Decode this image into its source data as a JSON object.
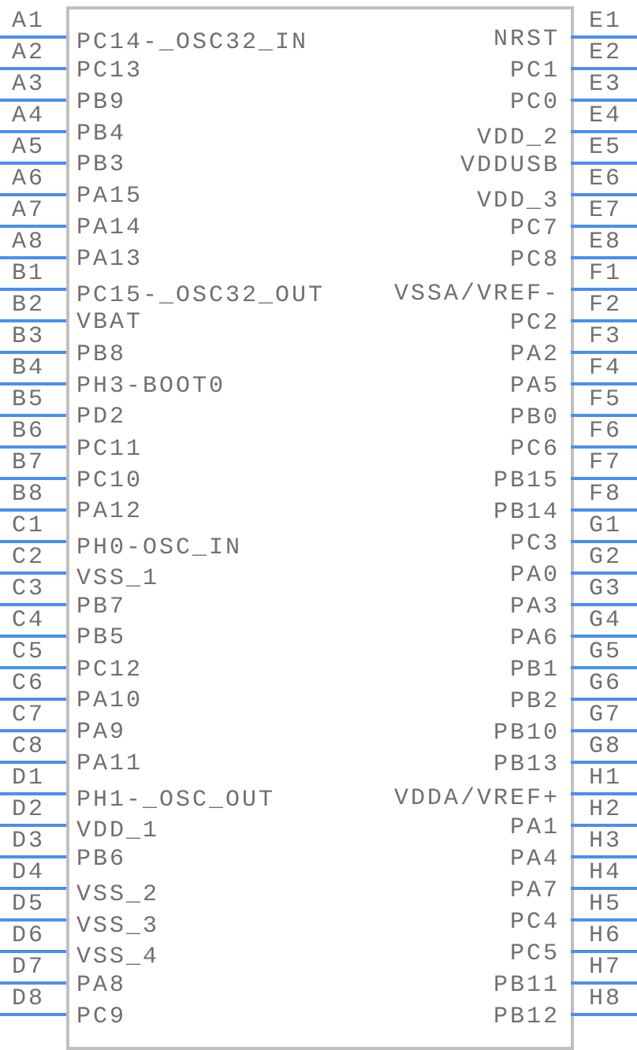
{
  "colors": {
    "pin": "#4a8ff0",
    "outline": "#c0c0c0",
    "text": "#707070"
  },
  "left_pins": [
    {
      "num": "A1",
      "name": "PC14-_OSC32_IN"
    },
    {
      "num": "A2",
      "name": "PC13"
    },
    {
      "num": "A3",
      "name": "PB9"
    },
    {
      "num": "A4",
      "name": "PB4"
    },
    {
      "num": "A5",
      "name": "PB3"
    },
    {
      "num": "A6",
      "name": "PA15"
    },
    {
      "num": "A7",
      "name": "PA14"
    },
    {
      "num": "A8",
      "name": "PA13"
    },
    {
      "num": "B1",
      "name": "PC15-_OSC32_OUT"
    },
    {
      "num": "B2",
      "name": "VBAT"
    },
    {
      "num": "B3",
      "name": "PB8"
    },
    {
      "num": "B4",
      "name": "PH3-BOOT0"
    },
    {
      "num": "B5",
      "name": "PD2"
    },
    {
      "num": "B6",
      "name": "PC11"
    },
    {
      "num": "B7",
      "name": "PC10"
    },
    {
      "num": "B8",
      "name": "PA12"
    },
    {
      "num": "C1",
      "name": "PH0-OSC_IN"
    },
    {
      "num": "C2",
      "name": "VSS_1"
    },
    {
      "num": "C3",
      "name": "PB7"
    },
    {
      "num": "C4",
      "name": "PB5"
    },
    {
      "num": "C5",
      "name": "PC12"
    },
    {
      "num": "C6",
      "name": "PA10"
    },
    {
      "num": "C7",
      "name": "PA9"
    },
    {
      "num": "C8",
      "name": "PA11"
    },
    {
      "num": "D1",
      "name": "PH1-_OSC_OUT"
    },
    {
      "num": "D2",
      "name": "VDD_1"
    },
    {
      "num": "D3",
      "name": "PB6"
    },
    {
      "num": "D4",
      "name": "VSS_2"
    },
    {
      "num": "D5",
      "name": "VSS_3"
    },
    {
      "num": "D6",
      "name": "VSS_4"
    },
    {
      "num": "D7",
      "name": "PA8"
    },
    {
      "num": "D8",
      "name": "PC9"
    }
  ],
  "right_pins": [
    {
      "num": "E1",
      "name": "NRST"
    },
    {
      "num": "E2",
      "name": "PC1"
    },
    {
      "num": "E3",
      "name": "PC0"
    },
    {
      "num": "E4",
      "name": "VDD_2"
    },
    {
      "num": "E5",
      "name": "VDDUSB"
    },
    {
      "num": "E6",
      "name": "VDD_3"
    },
    {
      "num": "E7",
      "name": "PC7"
    },
    {
      "num": "E8",
      "name": "PC8"
    },
    {
      "num": "F1",
      "name": "VSSA/VREF-"
    },
    {
      "num": "F2",
      "name": "PC2"
    },
    {
      "num": "F3",
      "name": "PA2"
    },
    {
      "num": "F4",
      "name": "PA5"
    },
    {
      "num": "F5",
      "name": "PB0"
    },
    {
      "num": "F6",
      "name": "PC6"
    },
    {
      "num": "F7",
      "name": "PB15"
    },
    {
      "num": "F8",
      "name": "PB14"
    },
    {
      "num": "G1",
      "name": "PC3"
    },
    {
      "num": "G2",
      "name": "PA0"
    },
    {
      "num": "G3",
      "name": "PA3"
    },
    {
      "num": "G4",
      "name": "PA6"
    },
    {
      "num": "G5",
      "name": "PB1"
    },
    {
      "num": "G6",
      "name": "PB2"
    },
    {
      "num": "G7",
      "name": "PB10"
    },
    {
      "num": "G8",
      "name": "PB13"
    },
    {
      "num": "H1",
      "name": "VDDA/VREF+"
    },
    {
      "num": "H2",
      "name": "PA1"
    },
    {
      "num": "H3",
      "name": "PA4"
    },
    {
      "num": "H4",
      "name": "PA7"
    },
    {
      "num": "H5",
      "name": "PC4"
    },
    {
      "num": "H6",
      "name": "PC5"
    },
    {
      "num": "H7",
      "name": "PB11"
    },
    {
      "num": "H8",
      "name": "PB12"
    }
  ]
}
